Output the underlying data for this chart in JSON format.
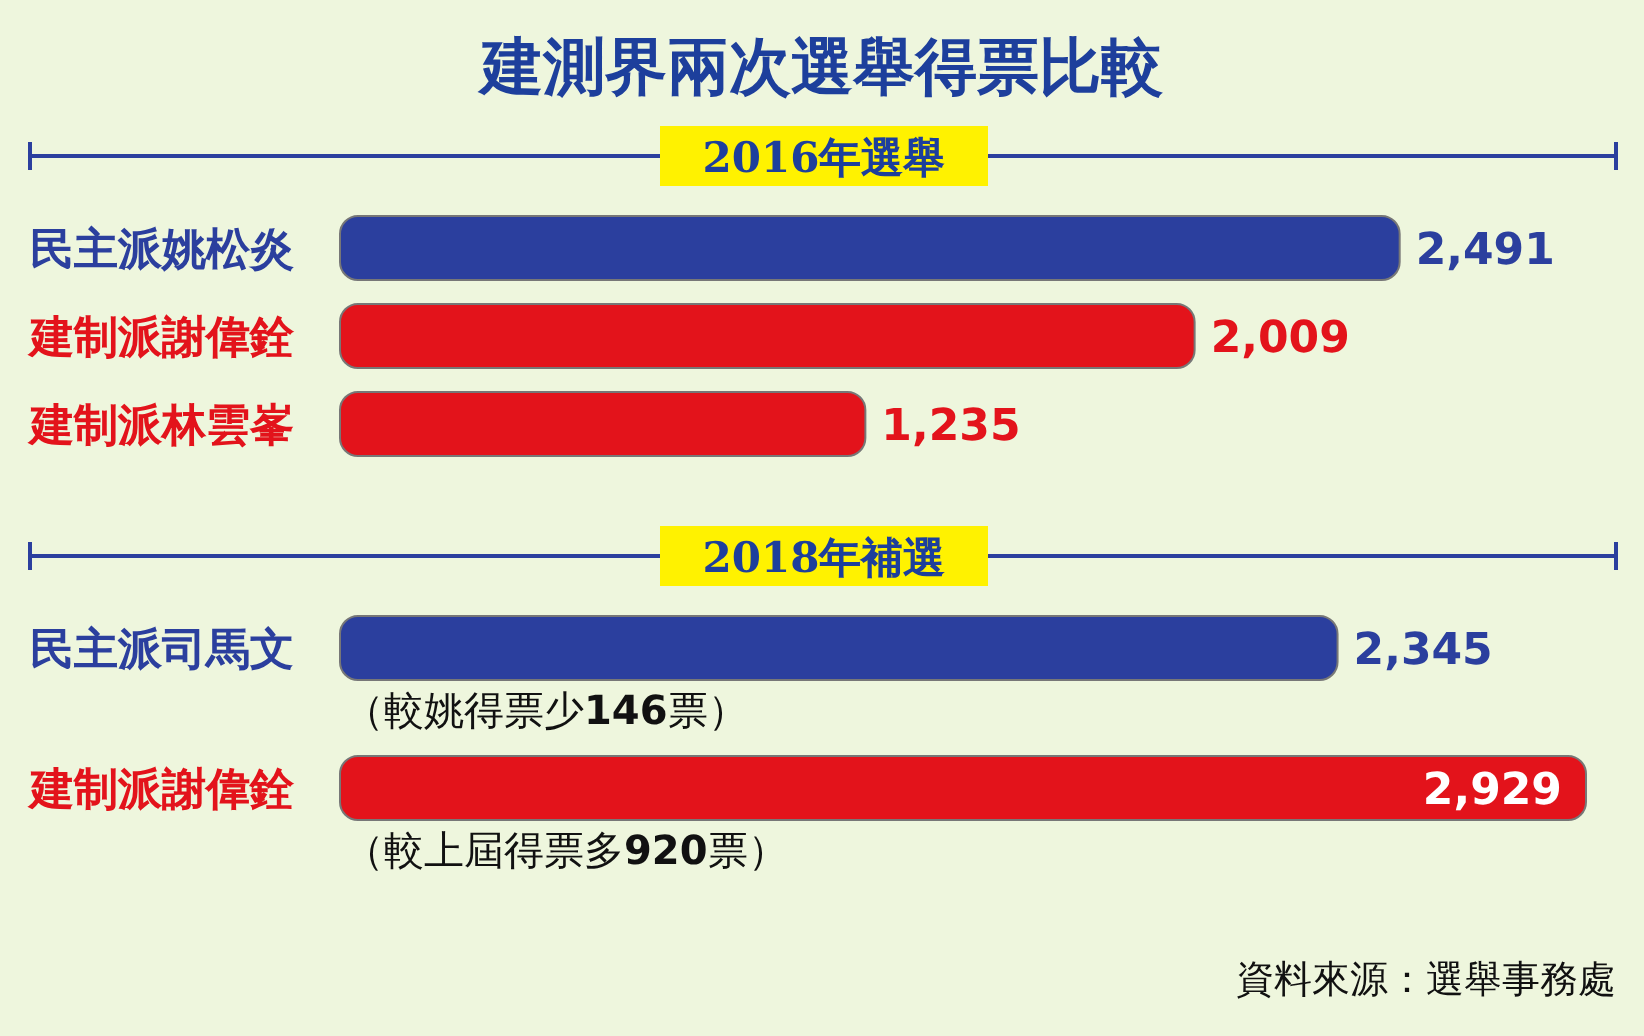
{
  "chart_data": [
    {
      "type": "bar",
      "orientation": "horizontal",
      "title": "建測界兩次選舉得票比較",
      "subtitle": "2016年選舉",
      "value_labels": [
        "2,491",
        "2,009",
        "1,235"
      ],
      "categories": [
        "民主派姚松炎",
        "建制派謝偉銓",
        "建制派林雲峯"
      ],
      "values": [
        2491,
        2009,
        1235
      ],
      "colors": [
        "#2b3f9e",
        "#e3131b",
        "#e3131b"
      ]
    },
    {
      "type": "bar",
      "orientation": "horizontal",
      "subtitle": "2018年補選",
      "value_labels": [
        "2,345",
        "2,929"
      ],
      "categories": [
        "民主派司馬文",
        "建制派謝偉銓"
      ],
      "values": [
        2345,
        2929
      ],
      "colors": [
        "#2b3f9e",
        "#e3131b"
      ],
      "annotations": [
        "（較姚得票少**146**票）",
        "（較上屆得票多**920**票）",
        "資料來源：選舉事務處"
      ]
    }
  ]
}
